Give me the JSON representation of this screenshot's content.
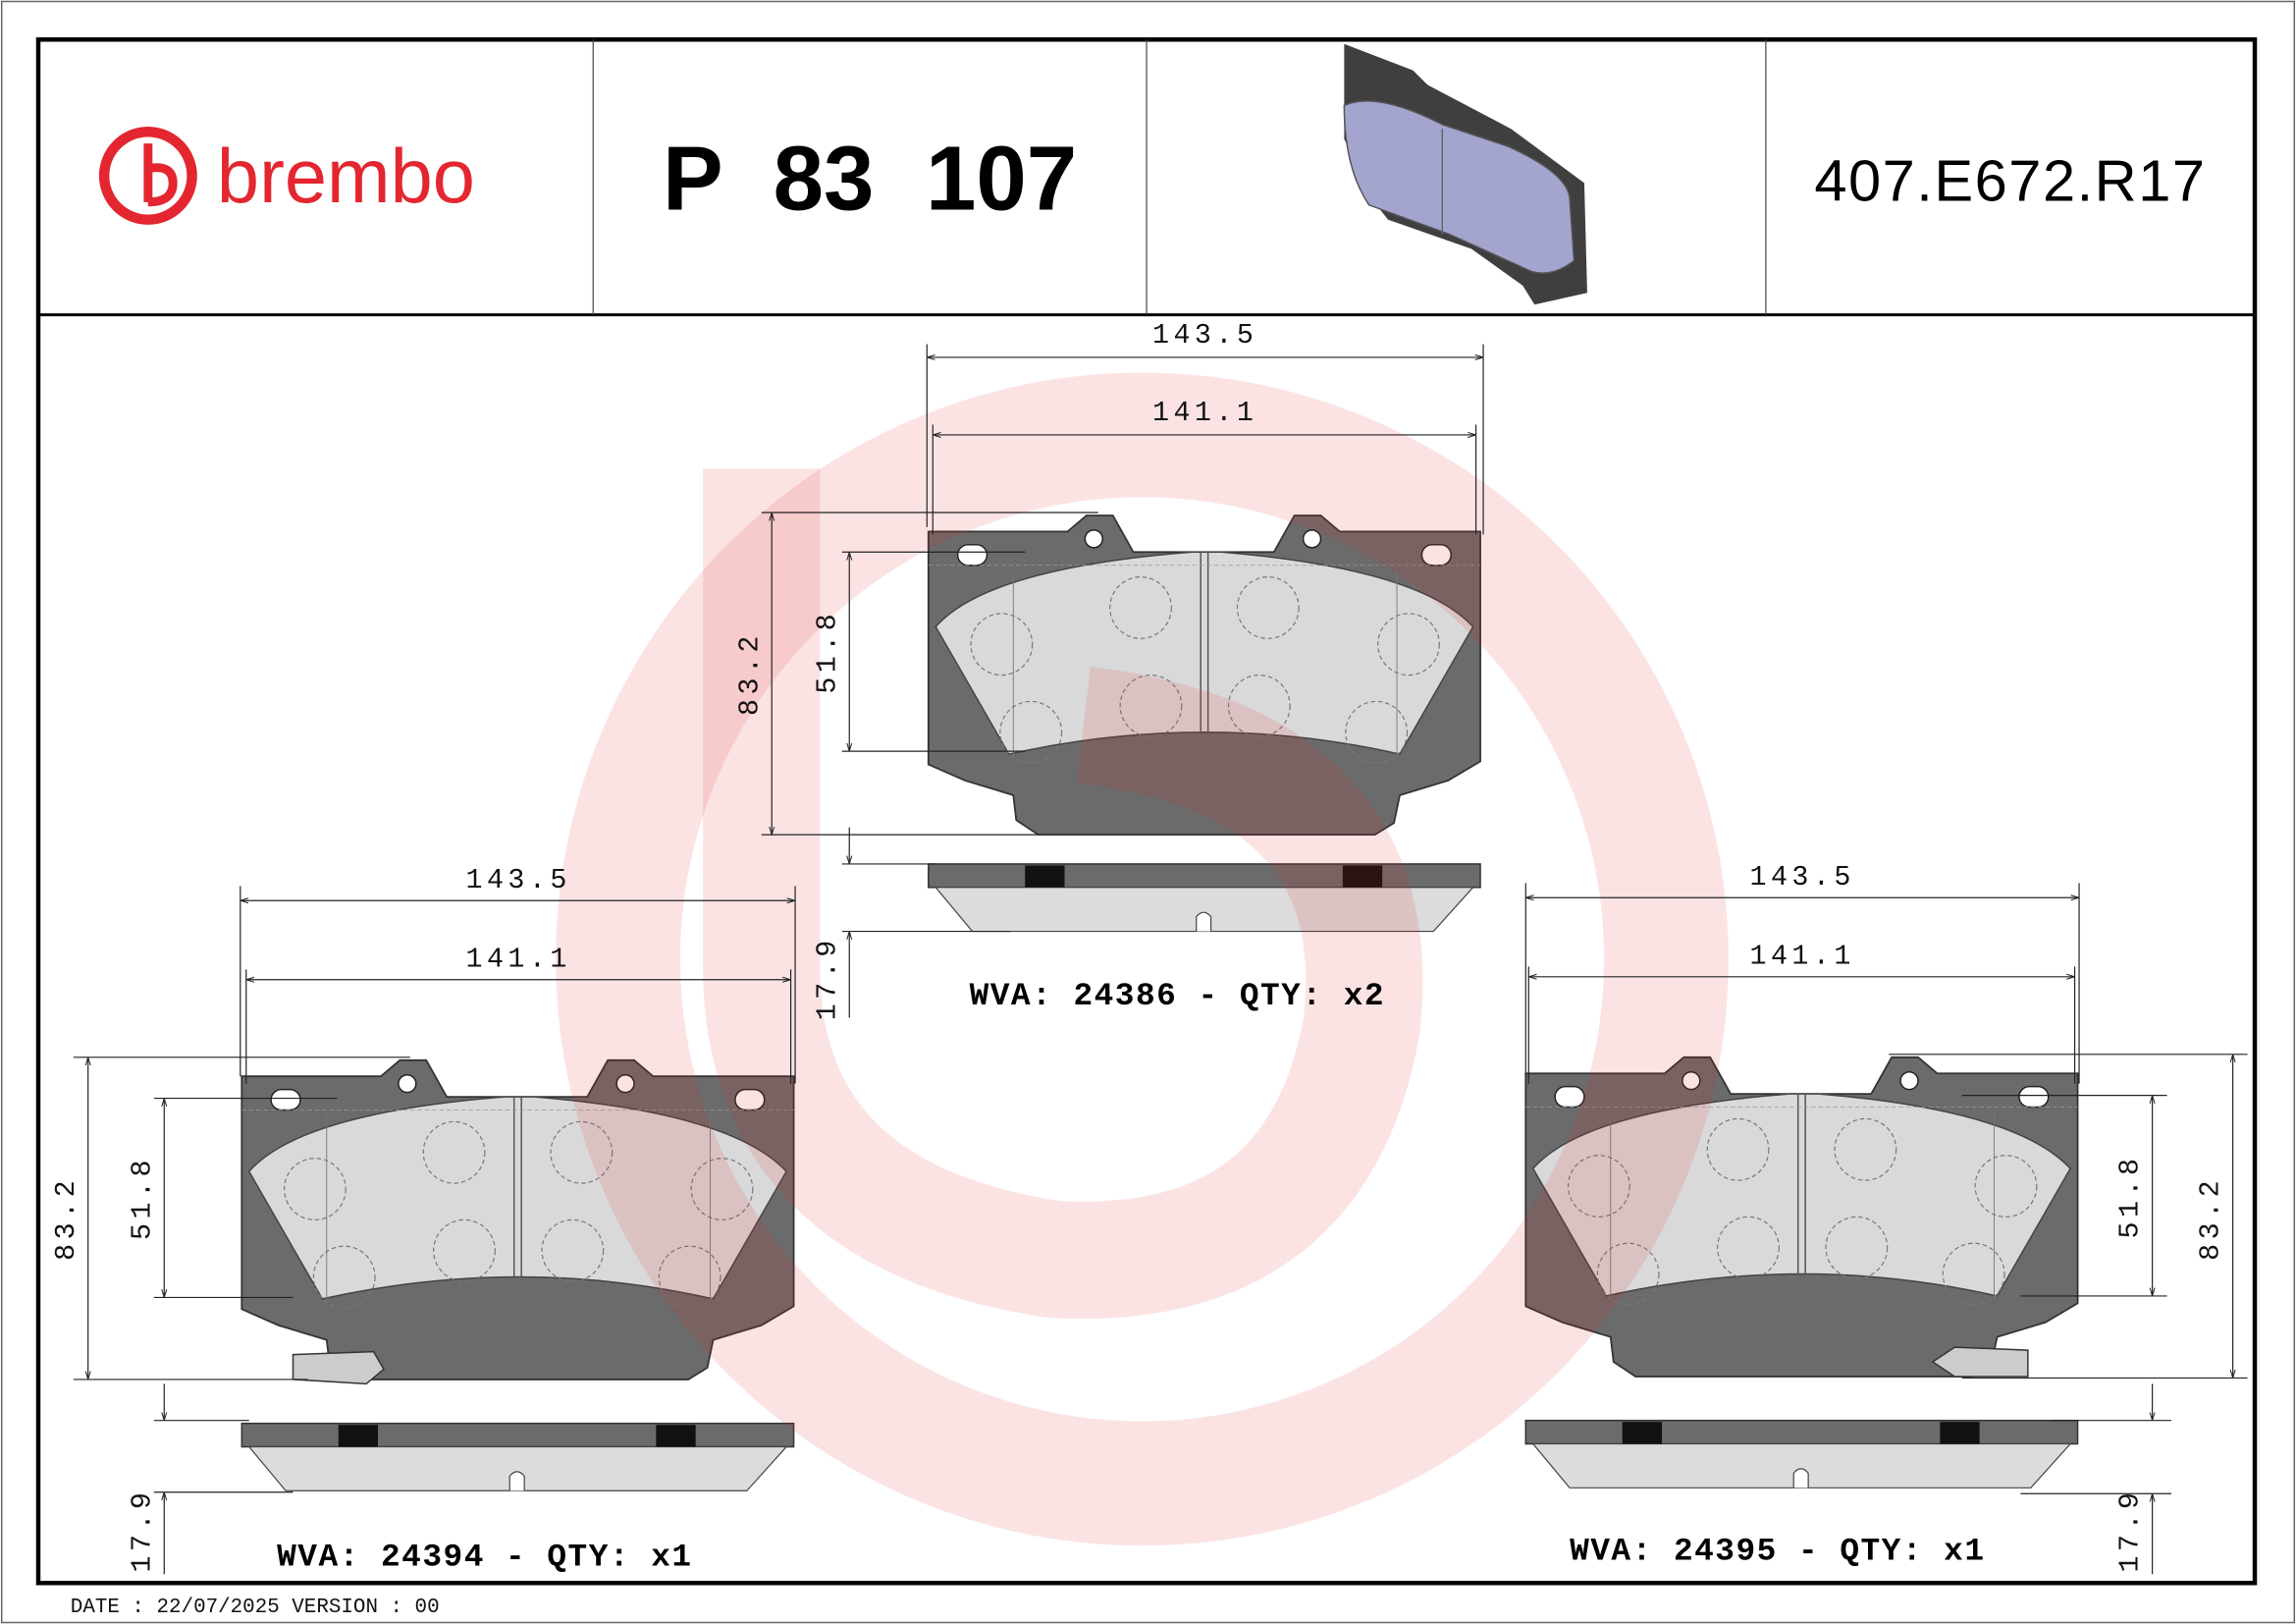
{
  "header": {
    "brand": "brembo",
    "part_number": "P 83 107",
    "reference_code": "407.E672.R17",
    "brand_color": "#e3262f"
  },
  "pads": [
    {
      "id": "top",
      "wva_label": "WVA: 24386 - QTY: x2",
      "width_outer": "143.5",
      "width_inner": "141.1",
      "height_total": "83.2",
      "height_friction": "51.8",
      "thickness": "17.9"
    },
    {
      "id": "left",
      "wva_label": "WVA: 24394 - QTY: x1",
      "width_outer": "143.5",
      "width_inner": "141.1",
      "height_total": "83.2",
      "height_friction": "51.8",
      "thickness": "17.9"
    },
    {
      "id": "right",
      "wva_label": "WVA: 24395 - QTY: x1",
      "width_outer": "143.5",
      "width_inner": "141.1",
      "height_total": "83.2",
      "height_friction": "51.8",
      "thickness": "17.9"
    }
  ],
  "footer": {
    "date_version": "DATE : 22/07/2025 VERSION : 00"
  },
  "colors": {
    "backing_plate": "#6b6b6b",
    "friction": "#d9d9d9",
    "watermark": "#e3262f",
    "pad_3d": "#a3a5cf"
  }
}
